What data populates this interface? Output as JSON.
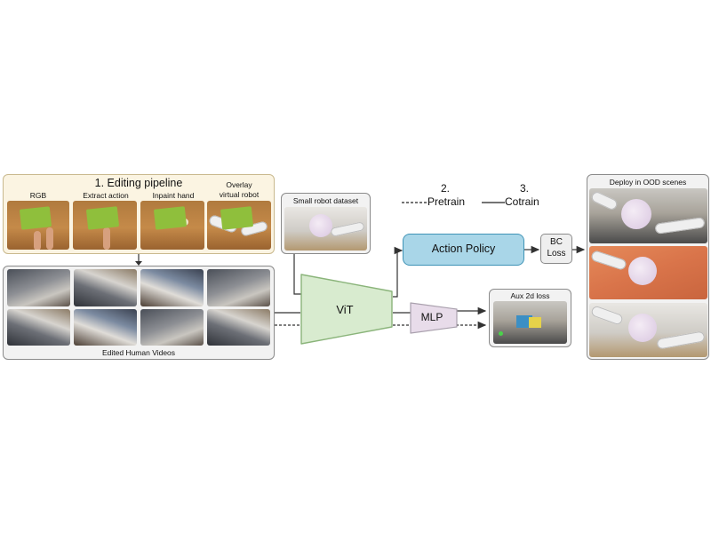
{
  "editing_pipeline": {
    "title": "1. Editing pipeline",
    "steps": [
      "RGB",
      "Extract action",
      "Inpaint hand",
      "Overlay\nvirtual robot"
    ],
    "footer": "Edited Human Videos"
  },
  "small_robot_dataset": {
    "label": "Small robot dataset"
  },
  "legend": {
    "pretrain_number": "2.",
    "pretrain_label": "Pretrain",
    "cotrain_number": "3.",
    "cotrain_label": "Cotrain"
  },
  "vit": {
    "label": "ViT"
  },
  "mlp": {
    "label": "MLP"
  },
  "action_policy": {
    "label": "Action Policy"
  },
  "bc_loss": {
    "line1": "BC",
    "line2": "Loss"
  },
  "aux_loss": {
    "label": "Aux 2d loss"
  },
  "deploy": {
    "title": "Deploy in OOD scenes"
  },
  "colors": {
    "pipeline_bg": "#fbf4e2",
    "vit_fill": "#d8ebcf",
    "vit_stroke": "#8ab47a",
    "mlp_fill": "#e8dcea",
    "action_policy_fill": "#a9d6e8",
    "action_policy_stroke": "#3f93b6"
  }
}
